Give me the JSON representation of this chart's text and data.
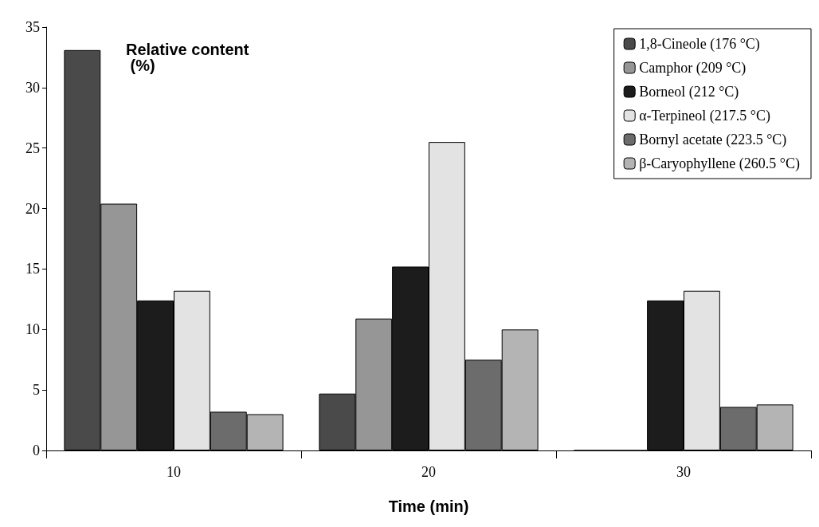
{
  "chart_data": {
    "type": "bar",
    "ylabel": "Relative content (%)",
    "xlabel": "Time (min)",
    "categories": [
      "10",
      "20",
      "30"
    ],
    "series": [
      {
        "name": "1,8-Cineole (176 °C)",
        "color": "#4a4a4a",
        "values": [
          33.1,
          4.7,
          0
        ]
      },
      {
        "name": "Camphor (209 °C)",
        "color": "#969696",
        "values": [
          20.4,
          10.9,
          0
        ]
      },
      {
        "name": "Borneol (212 °C)",
        "color": "#1c1c1c",
        "values": [
          12.4,
          15.2,
          12.4
        ]
      },
      {
        "name": "α-Terpineol (217.5 °C)",
        "color": "#e3e3e3",
        "values": [
          13.2,
          25.5,
          13.2
        ]
      },
      {
        "name": "Bornyl acetate (223.5 °C)",
        "color": "#6c6c6c",
        "values": [
          3.2,
          7.5,
          3.6
        ]
      },
      {
        "name": "β-Caryophyllene (260.5 °C)",
        "color": "#b4b4b4",
        "values": [
          3.0,
          10.0,
          3.8
        ]
      }
    ],
    "ylim": [
      0,
      35
    ],
    "yticks": [
      0,
      5,
      10,
      15,
      20,
      25,
      30,
      35
    ],
    "grid": false,
    "legend": "top right"
  }
}
